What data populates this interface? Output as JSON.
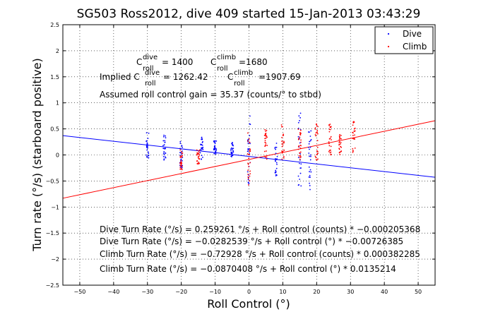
{
  "chart_data": {
    "type": "scatter",
    "title": "SG503 Ross2012, dive 409 started 15-Jan-2013 03:43:29",
    "xlabel": "Roll Control (°)",
    "ylabel": "Turn rate (°/s) (starboard positive)",
    "xlim": [
      -55,
      55
    ],
    "ylim": [
      -2.5,
      2.5
    ],
    "xticks": [
      -50,
      -40,
      -30,
      -20,
      -10,
      0,
      10,
      20,
      30,
      40,
      50
    ],
    "yticks": [
      -2.5,
      -2,
      -1.5,
      -1,
      -0.5,
      0,
      0.5,
      1,
      1.5,
      2,
      2.5
    ],
    "xtick_labels": [
      "−50",
      "−40",
      "−30",
      "−20",
      "−10",
      "0",
      "10",
      "20",
      "30",
      "40",
      "50"
    ],
    "ytick_labels": [
      "−2.5",
      "−2",
      "−1.5",
      "−1",
      "−0.5",
      "0",
      "0.5",
      "1",
      "1.5",
      "2",
      "2.5"
    ],
    "grid": true,
    "legend_position": "top-right",
    "series": [
      {
        "name": "Dive",
        "color": "#0000ff",
        "marker": "dot",
        "clusters": [
          {
            "x": -30,
            "y_min": -0.1,
            "y_max": 0.45
          },
          {
            "x": -25,
            "y_min": -0.1,
            "y_max": 0.4
          },
          {
            "x": -20,
            "y_min": -0.25,
            "y_max": 0.35
          },
          {
            "x": -14,
            "y_min": -0.1,
            "y_max": 0.35
          },
          {
            "x": -10,
            "y_min": 0.0,
            "y_max": 0.3
          },
          {
            "x": -5,
            "y_min": -0.05,
            "y_max": 0.25
          },
          {
            "x": 0,
            "y_min": -0.55,
            "y_max": 0.8
          },
          {
            "x": 8,
            "y_min": -0.4,
            "y_max": 0.3
          },
          {
            "x": 15,
            "y_min": -0.6,
            "y_max": 0.85
          },
          {
            "x": 18,
            "y_min": -0.7,
            "y_max": 0.5
          }
        ]
      },
      {
        "name": "Climb",
        "color": "#ff0000",
        "marker": "dot",
        "clusters": [
          {
            "x": -20,
            "y_min": -0.3,
            "y_max": 0.1
          },
          {
            "x": -15,
            "y_min": -0.2,
            "y_max": 0.1
          },
          {
            "x": 0,
            "y_min": -0.6,
            "y_max": 0.45
          },
          {
            "x": 5,
            "y_min": -0.1,
            "y_max": 0.5
          },
          {
            "x": 10,
            "y_min": -0.1,
            "y_max": 0.6
          },
          {
            "x": 15,
            "y_min": -0.1,
            "y_max": 0.5
          },
          {
            "x": 20,
            "y_min": -0.1,
            "y_max": 0.6
          },
          {
            "x": 24,
            "y_min": 0.0,
            "y_max": 0.6
          },
          {
            "x": 27,
            "y_min": 0.0,
            "y_max": 0.4
          },
          {
            "x": 31,
            "y_min": 0.0,
            "y_max": 0.65
          }
        ]
      }
    ],
    "fit_lines": [
      {
        "color": "#0000ff",
        "intercept": -0.0282539,
        "slope": -0.00726385
      },
      {
        "color": "#ff0000",
        "intercept": -0.0870408,
        "slope": 0.0135214
      }
    ],
    "annotations": {
      "c_dive": {
        "label": "C",
        "sup": "dive",
        "sub": "roll",
        "value": "= 1400"
      },
      "c_climb": {
        "label": "C",
        "sup": "climb",
        "sub": "roll",
        "value": "=1680"
      },
      "implied_dive": {
        "prefix": "Implied C",
        "sup": "dive",
        "sub": "roll",
        "value": "= 1262.42"
      },
      "implied_climb": {
        "label": "C",
        "sup": "climb",
        "sub": "roll",
        "value": "=1907.69"
      },
      "gain": "Assumed roll control gain = 35.37 (counts/° to stbd)",
      "fits": [
        "Dive Turn Rate (°/s) = 0.259261 °/s + Roll control (counts) * −0.000205368",
        "Dive Turn Rate (°/s) = −0.0282539 °/s + Roll control (°) * −0.00726385",
        "Climb Turn Rate (°/s) = −0.72928 °/s + Roll control (counts) * 0.000382285",
        "Climb Turn Rate (°/s) = −0.0870408 °/s + Roll control (°) * 0.0135214"
      ]
    }
  }
}
